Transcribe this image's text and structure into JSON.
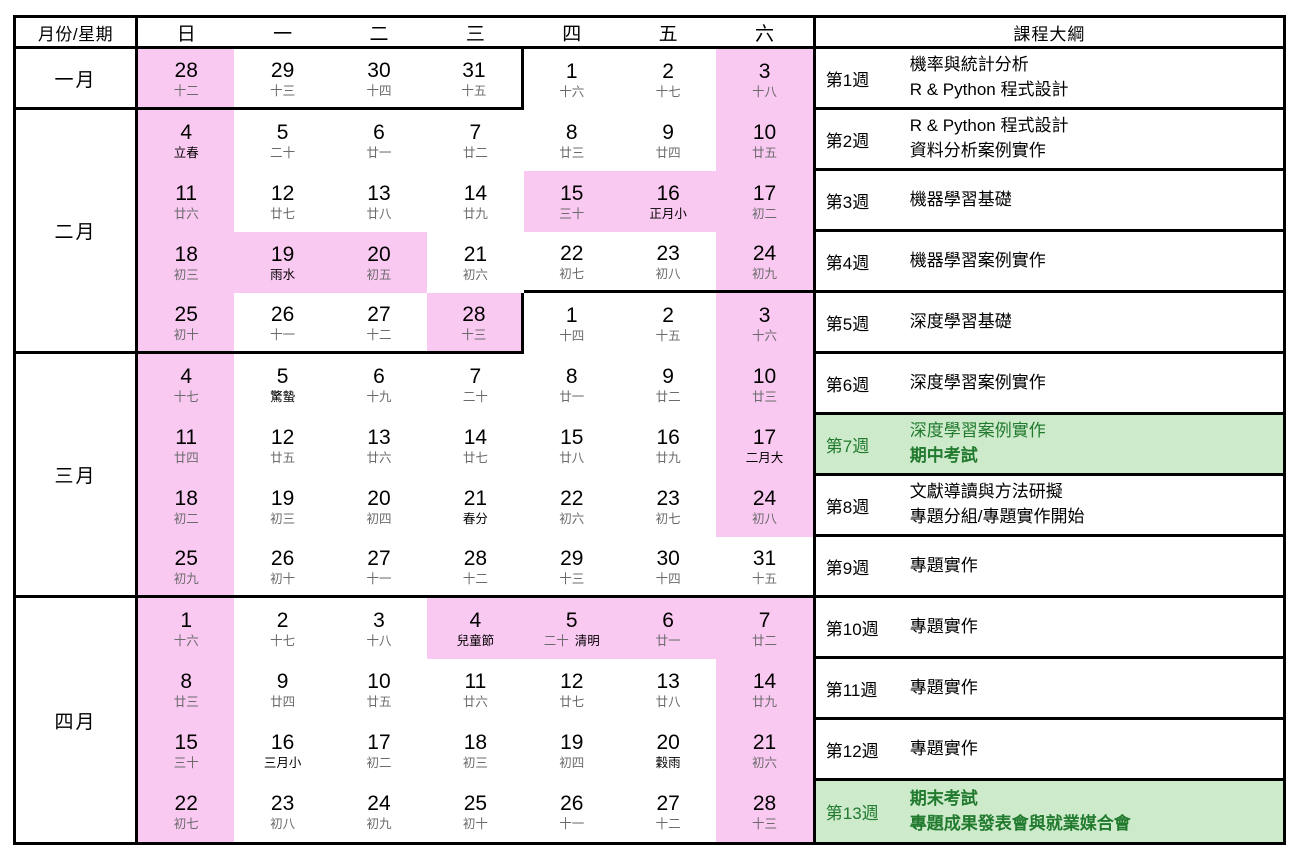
{
  "header": {
    "corner": "月份/星期",
    "days": [
      "日",
      "一",
      "二",
      "三",
      "四",
      "五",
      "六"
    ],
    "outline": "課程大綱"
  },
  "months": [
    {
      "name": "一月",
      "rows": 1
    },
    {
      "name": "二月",
      "rows": 4
    },
    {
      "name": "三月",
      "rows": 4
    },
    {
      "name": "四月",
      "rows": 4
    }
  ],
  "weeks": [
    {
      "label": "第1週",
      "highlight": false,
      "courses": [
        {
          "text": "機率與統計分析",
          "bold": false
        },
        {
          "text": "R & Python 程式設計",
          "bold": false
        }
      ],
      "days": [
        {
          "day": "28",
          "lunar": "十二",
          "pink": true
        },
        {
          "day": "29",
          "lunar": "十三"
        },
        {
          "day": "30",
          "lunar": "十四"
        },
        {
          "day": "31",
          "lunar": "十五"
        },
        {
          "day": "1",
          "lunar": "十六"
        },
        {
          "day": "2",
          "lunar": "十七"
        },
        {
          "day": "3",
          "lunar": "十八",
          "pink": true
        }
      ]
    },
    {
      "label": "第2週",
      "highlight": false,
      "courses": [
        {
          "text": "R & Python 程式設計",
          "bold": false
        },
        {
          "text": "資料分析案例實作",
          "bold": false
        }
      ],
      "days": [
        {
          "day": "4",
          "lunar": "立春",
          "pink": true,
          "dark": true
        },
        {
          "day": "5",
          "lunar": "二十"
        },
        {
          "day": "6",
          "lunar": "廿一"
        },
        {
          "day": "7",
          "lunar": "廿二"
        },
        {
          "day": "8",
          "lunar": "廿三"
        },
        {
          "day": "9",
          "lunar": "廿四"
        },
        {
          "day": "10",
          "lunar": "廿五",
          "pink": true
        }
      ]
    },
    {
      "label": "第3週",
      "highlight": false,
      "courses": [
        {
          "text": "機器學習基礎",
          "bold": false
        }
      ],
      "days": [
        {
          "day": "11",
          "lunar": "廿六",
          "pink": true
        },
        {
          "day": "12",
          "lunar": "廿七"
        },
        {
          "day": "13",
          "lunar": "廿八"
        },
        {
          "day": "14",
          "lunar": "廿九"
        },
        {
          "day": "15",
          "lunar": "三十",
          "pink": true
        },
        {
          "day": "16",
          "lunar": "正月小",
          "pink": true,
          "dark": true
        },
        {
          "day": "17",
          "lunar": "初二",
          "pink": true
        }
      ]
    },
    {
      "label": "第4週",
      "highlight": false,
      "courses": [
        {
          "text": "機器學習案例實作",
          "bold": false
        }
      ],
      "days": [
        {
          "day": "18",
          "lunar": "初三",
          "pink": true
        },
        {
          "day": "19",
          "lunar": "雨水",
          "pink": true,
          "dark": true
        },
        {
          "day": "20",
          "lunar": "初五",
          "pink": true
        },
        {
          "day": "21",
          "lunar": "初六"
        },
        {
          "day": "22",
          "lunar": "初七"
        },
        {
          "day": "23",
          "lunar": "初八"
        },
        {
          "day": "24",
          "lunar": "初九",
          "pink": true
        }
      ]
    },
    {
      "label": "第5週",
      "highlight": false,
      "courses": [
        {
          "text": "深度學習基礎",
          "bold": false
        }
      ],
      "days": [
        {
          "day": "25",
          "lunar": "初十",
          "pink": true
        },
        {
          "day": "26",
          "lunar": "十一"
        },
        {
          "day": "27",
          "lunar": "十二"
        },
        {
          "day": "28",
          "lunar": "十三",
          "pink": true
        },
        {
          "day": "1",
          "lunar": "十四"
        },
        {
          "day": "2",
          "lunar": "十五"
        },
        {
          "day": "3",
          "lunar": "十六",
          "pink": true
        }
      ]
    },
    {
      "label": "第6週",
      "highlight": false,
      "courses": [
        {
          "text": "深度學習案例實作",
          "bold": false
        }
      ],
      "days": [
        {
          "day": "4",
          "lunar": "十七",
          "pink": true
        },
        {
          "day": "5",
          "lunar": "驚蟄",
          "dark": true
        },
        {
          "day": "6",
          "lunar": "十九"
        },
        {
          "day": "7",
          "lunar": "二十"
        },
        {
          "day": "8",
          "lunar": "廿一"
        },
        {
          "day": "9",
          "lunar": "廿二"
        },
        {
          "day": "10",
          "lunar": "廿三",
          "pink": true
        }
      ]
    },
    {
      "label": "第7週",
      "highlight": true,
      "courses": [
        {
          "text": "深度學習案例實作",
          "bold": false
        },
        {
          "text": "期中考試",
          "bold": true
        }
      ],
      "days": [
        {
          "day": "11",
          "lunar": "廿四",
          "pink": true
        },
        {
          "day": "12",
          "lunar": "廿五"
        },
        {
          "day": "13",
          "lunar": "廿六"
        },
        {
          "day": "14",
          "lunar": "廿七"
        },
        {
          "day": "15",
          "lunar": "廿八"
        },
        {
          "day": "16",
          "lunar": "廿九"
        },
        {
          "day": "17",
          "lunar": "二月大",
          "pink": true,
          "dark": true
        }
      ]
    },
    {
      "label": "第8週",
      "highlight": false,
      "courses": [
        {
          "text": "文獻導讀與方法研擬",
          "bold": false
        },
        {
          "text": "專題分組/專題實作開始",
          "bold": false
        }
      ],
      "days": [
        {
          "day": "18",
          "lunar": "初二",
          "pink": true
        },
        {
          "day": "19",
          "lunar": "初三"
        },
        {
          "day": "20",
          "lunar": "初四"
        },
        {
          "day": "21",
          "lunar": "春分",
          "dark": true
        },
        {
          "day": "22",
          "lunar": "初六"
        },
        {
          "day": "23",
          "lunar": "初七"
        },
        {
          "day": "24",
          "lunar": "初八",
          "pink": true
        }
      ]
    },
    {
      "label": "第9週",
      "highlight": false,
      "courses": [
        {
          "text": "專題實作",
          "bold": false
        }
      ],
      "days": [
        {
          "day": "25",
          "lunar": "初九",
          "pink": true
        },
        {
          "day": "26",
          "lunar": "初十"
        },
        {
          "day": "27",
          "lunar": "十一"
        },
        {
          "day": "28",
          "lunar": "十二"
        },
        {
          "day": "29",
          "lunar": "十三"
        },
        {
          "day": "30",
          "lunar": "十四"
        },
        {
          "day": "31",
          "lunar": "十五"
        }
      ]
    },
    {
      "label": "第10週",
      "highlight": false,
      "courses": [
        {
          "text": "專題實作",
          "bold": false
        }
      ],
      "days": [
        {
          "day": "1",
          "lunar": "十六",
          "pink": true
        },
        {
          "day": "2",
          "lunar": "十七"
        },
        {
          "day": "3",
          "lunar": "十八"
        },
        {
          "day": "4",
          "lunar": "兒童節",
          "pink": true,
          "dark": true
        },
        {
          "day": "5",
          "lunar": "二十",
          "lunar2": "清明",
          "pink": true
        },
        {
          "day": "6",
          "lunar": "廿一",
          "pink": true
        },
        {
          "day": "7",
          "lunar": "廿二",
          "pink": true
        }
      ]
    },
    {
      "label": "第11週",
      "highlight": false,
      "courses": [
        {
          "text": "專題實作",
          "bold": false
        }
      ],
      "days": [
        {
          "day": "8",
          "lunar": "廿三",
          "pink": true
        },
        {
          "day": "9",
          "lunar": "廿四"
        },
        {
          "day": "10",
          "lunar": "廿五"
        },
        {
          "day": "11",
          "lunar": "廿六"
        },
        {
          "day": "12",
          "lunar": "廿七"
        },
        {
          "day": "13",
          "lunar": "廿八"
        },
        {
          "day": "14",
          "lunar": "廿九",
          "pink": true
        }
      ]
    },
    {
      "label": "第12週",
      "highlight": false,
      "courses": [
        {
          "text": "專題實作",
          "bold": false
        }
      ],
      "days": [
        {
          "day": "15",
          "lunar": "三十",
          "pink": true
        },
        {
          "day": "16",
          "lunar": "三月小",
          "dark": true
        },
        {
          "day": "17",
          "lunar": "初二"
        },
        {
          "day": "18",
          "lunar": "初三"
        },
        {
          "day": "19",
          "lunar": "初四"
        },
        {
          "day": "20",
          "lunar": "穀雨",
          "dark": true
        },
        {
          "day": "21",
          "lunar": "初六",
          "pink": true
        }
      ]
    },
    {
      "label": "第13週",
      "highlight": true,
      "courses": [
        {
          "text": "期末考試",
          "bold": true
        },
        {
          "text": "專題成果發表會與就業媒合會",
          "bold": true
        }
      ],
      "days": [
        {
          "day": "22",
          "lunar": "初七",
          "pink": true
        },
        {
          "day": "23",
          "lunar": "初八"
        },
        {
          "day": "24",
          "lunar": "初九"
        },
        {
          "day": "25",
          "lunar": "初十"
        },
        {
          "day": "26",
          "lunar": "十一"
        },
        {
          "day": "27",
          "lunar": "十二"
        },
        {
          "day": "28",
          "lunar": "十三",
          "pink": true
        }
      ]
    }
  ],
  "colors": {
    "pink": "#fac9f2",
    "green_bg": "#cdeacb",
    "green_text": "#217a2e",
    "lunar_gray": "#6b6b6b",
    "border": "#000000"
  }
}
